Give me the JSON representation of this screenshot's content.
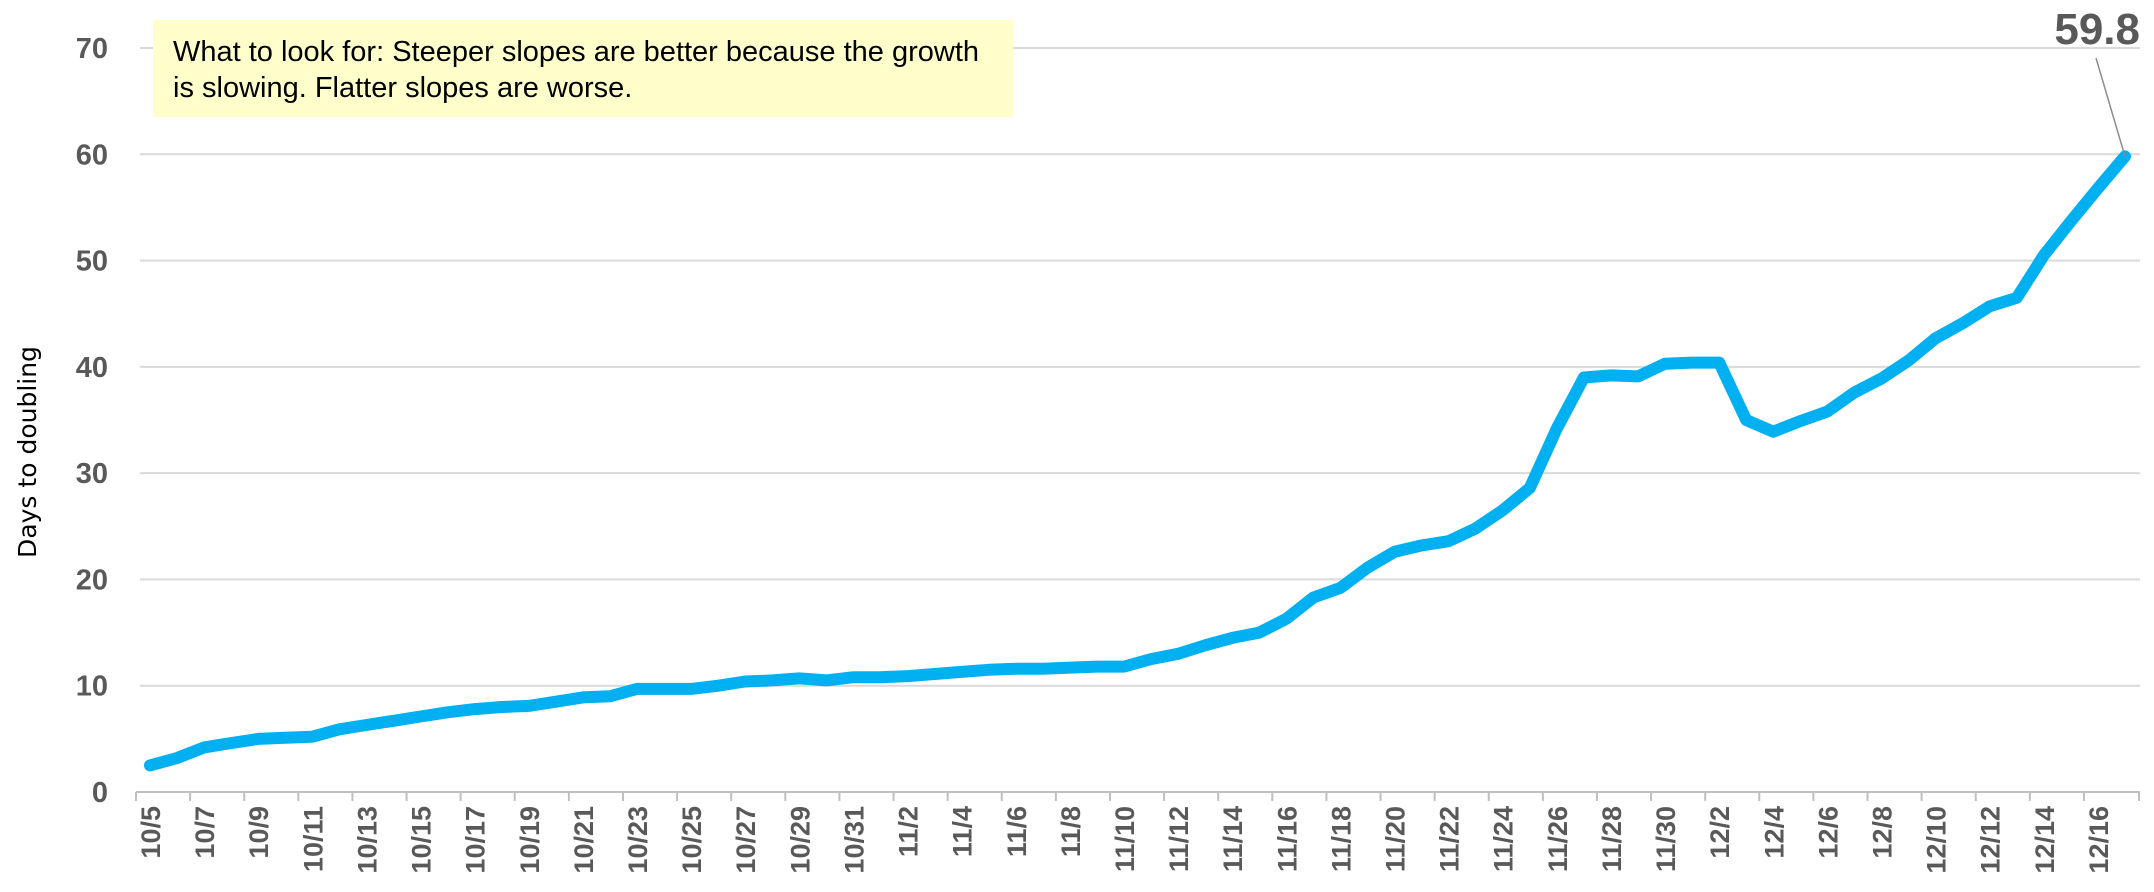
{
  "chart_data": {
    "type": "line",
    "title": "",
    "ylabel": "Days to doubling",
    "xlabel": "",
    "ylim": [
      0,
      70
    ],
    "yticks": [
      0,
      10,
      20,
      30,
      40,
      50,
      60,
      70
    ],
    "grid": true,
    "x_tick_labels": [
      "10/5",
      "10/7",
      "10/9",
      "10/11",
      "10/13",
      "10/15",
      "10/17",
      "10/19",
      "10/21",
      "10/23",
      "10/25",
      "10/27",
      "10/29",
      "10/31",
      "11/2",
      "11/4",
      "11/6",
      "11/8",
      "11/10",
      "11/12",
      "11/14",
      "11/16",
      "11/18",
      "11/20",
      "11/22",
      "11/24",
      "11/26",
      "11/28",
      "11/30",
      "12/2",
      "12/4",
      "12/6",
      "12/8",
      "12/10",
      "12/12",
      "12/14",
      "12/16"
    ],
    "x": [
      "10/5",
      "10/6",
      "10/7",
      "10/8",
      "10/9",
      "10/10",
      "10/11",
      "10/12",
      "10/13",
      "10/14",
      "10/15",
      "10/16",
      "10/17",
      "10/18",
      "10/19",
      "10/20",
      "10/21",
      "10/22",
      "10/23",
      "10/24",
      "10/25",
      "10/26",
      "10/27",
      "10/28",
      "10/29",
      "10/30",
      "10/31",
      "11/1",
      "11/2",
      "11/3",
      "11/4",
      "11/5",
      "11/6",
      "11/7",
      "11/8",
      "11/9",
      "11/10",
      "11/11",
      "11/12",
      "11/13",
      "11/14",
      "11/15",
      "11/16",
      "11/17",
      "11/18",
      "11/19",
      "11/20",
      "11/21",
      "11/22",
      "11/23",
      "11/24",
      "11/25",
      "11/26",
      "11/27",
      "11/28",
      "11/29",
      "11/30",
      "12/1",
      "12/2",
      "12/3",
      "12/4",
      "12/5",
      "12/6",
      "12/7",
      "12/8",
      "12/9",
      "12/10",
      "12/11",
      "12/12",
      "12/13",
      "12/14",
      "12/15",
      "12/16",
      "12/17"
    ],
    "series": [
      {
        "values": [
          2.5,
          3.2,
          4.2,
          4.6,
          5.0,
          5.1,
          5.2,
          5.9,
          6.3,
          6.7,
          7.1,
          7.5,
          7.8,
          8.0,
          8.1,
          8.5,
          8.9,
          9.0,
          9.7,
          9.7,
          9.7,
          10.0,
          10.4,
          10.5,
          10.7,
          10.5,
          10.8,
          10.8,
          10.9,
          11.1,
          11.3,
          11.5,
          11.6,
          11.6,
          11.7,
          11.8,
          11.8,
          12.5,
          13.0,
          13.8,
          14.5,
          15.0,
          16.3,
          18.3,
          19.2,
          21.1,
          22.6,
          23.2,
          23.6,
          24.8,
          26.5,
          28.6,
          34.2,
          39.0,
          39.2,
          39.1,
          40.3,
          40.4,
          40.4,
          35.0,
          33.9,
          34.9,
          35.8,
          37.6,
          38.9,
          40.6,
          42.7,
          44.1,
          45.7,
          46.5,
          50.5,
          53.7,
          56.8,
          59.8
        ]
      }
    ],
    "data_label": {
      "text": "59.8",
      "point": "12/17"
    },
    "annotation": "What to look for: Steeper slopes are better because the growth is slowing. Flatter slopes are worse.",
    "colors": {
      "line": "#00b0f0",
      "grid": "#d9d9d9",
      "text": "#595959",
      "annotation_bg": "#ffffcc"
    }
  }
}
